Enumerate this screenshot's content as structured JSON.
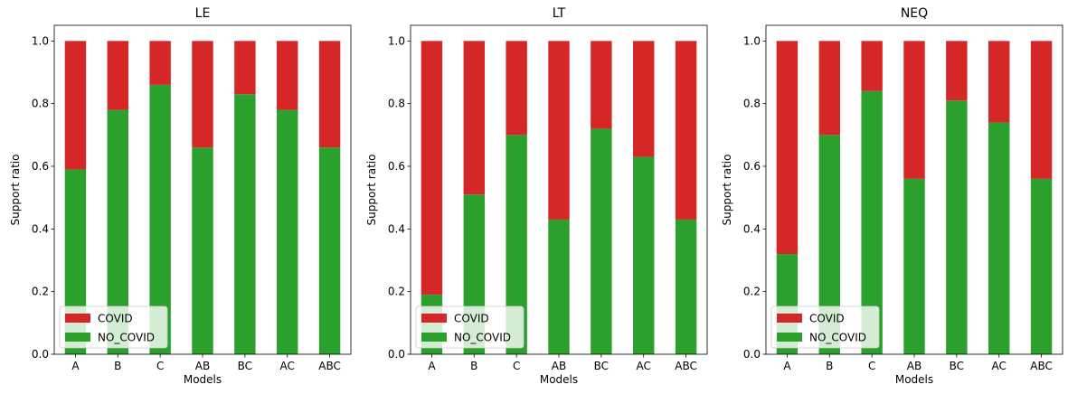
{
  "chart_data": [
    {
      "type": "bar",
      "stacked": true,
      "title": "LE",
      "xlabel": "Models",
      "ylabel": "Support ratio",
      "categories": [
        "A",
        "B",
        "C",
        "AB",
        "BC",
        "AC",
        "ABC"
      ],
      "ylim": [
        0,
        1.05
      ],
      "yticks": [
        "0.0",
        "0.2",
        "0.4",
        "0.6",
        "0.8",
        "1.0"
      ],
      "series": [
        {
          "name": "NO_COVID",
          "color": "#2ca02c",
          "values": [
            0.59,
            0.78,
            0.86,
            0.66,
            0.83,
            0.78,
            0.66
          ]
        },
        {
          "name": "COVID",
          "color": "#d62728",
          "values": [
            0.41,
            0.22,
            0.14,
            0.34,
            0.17,
            0.22,
            0.34
          ]
        }
      ],
      "legend": {
        "position": "lower left",
        "entries": [
          "COVID",
          "NO_COVID"
        ]
      }
    },
    {
      "type": "bar",
      "stacked": true,
      "title": "LT",
      "xlabel": "Models",
      "ylabel": "Support ratio",
      "categories": [
        "A",
        "B",
        "C",
        "AB",
        "BC",
        "AC",
        "ABC"
      ],
      "ylim": [
        0,
        1.05
      ],
      "yticks": [
        "0.0",
        "0.2",
        "0.4",
        "0.6",
        "0.8",
        "1.0"
      ],
      "series": [
        {
          "name": "NO_COVID",
          "color": "#2ca02c",
          "values": [
            0.19,
            0.51,
            0.7,
            0.43,
            0.72,
            0.63,
            0.43
          ]
        },
        {
          "name": "COVID",
          "color": "#d62728",
          "values": [
            0.81,
            0.49,
            0.3,
            0.57,
            0.28,
            0.37,
            0.57
          ]
        }
      ],
      "legend": {
        "position": "lower left",
        "entries": [
          "COVID",
          "NO_COVID"
        ]
      }
    },
    {
      "type": "bar",
      "stacked": true,
      "title": "NEQ",
      "xlabel": "Models",
      "ylabel": "Support ratio",
      "categories": [
        "A",
        "B",
        "C",
        "AB",
        "BC",
        "AC",
        "ABC"
      ],
      "ylim": [
        0,
        1.05
      ],
      "yticks": [
        "0.0",
        "0.2",
        "0.4",
        "0.6",
        "0.8",
        "1.0"
      ],
      "series": [
        {
          "name": "NO_COVID",
          "color": "#2ca02c",
          "values": [
            0.32,
            0.7,
            0.84,
            0.56,
            0.81,
            0.74,
            0.56
          ]
        },
        {
          "name": "COVID",
          "color": "#d62728",
          "values": [
            0.68,
            0.3,
            0.16,
            0.44,
            0.19,
            0.26,
            0.44
          ]
        }
      ],
      "legend": {
        "position": "lower left",
        "entries": [
          "COVID",
          "NO_COVID"
        ]
      }
    }
  ]
}
